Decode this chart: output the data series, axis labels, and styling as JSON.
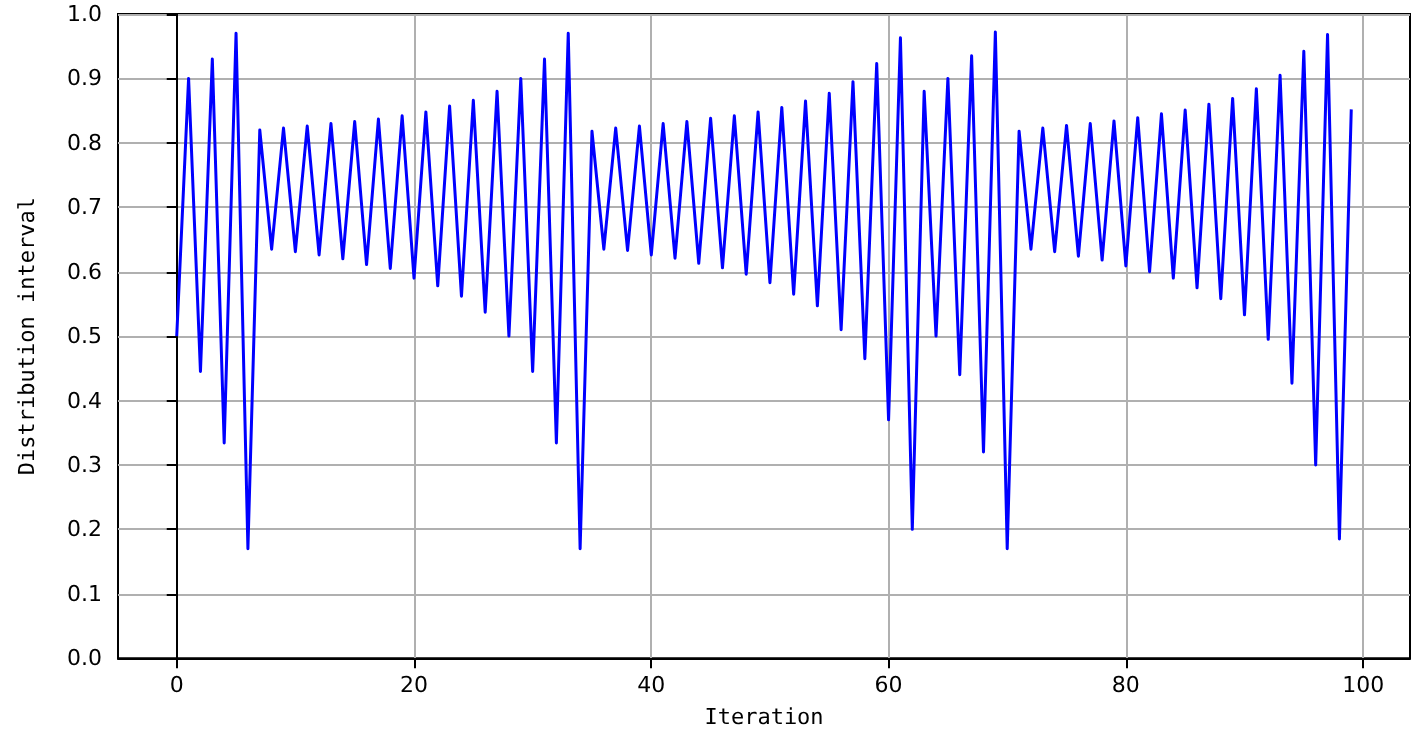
{
  "chart_data": {
    "type": "line",
    "xlabel": "Iteration",
    "ylabel": "Distribution interval",
    "x": [
      0,
      1,
      2,
      3,
      4,
      5,
      6,
      7,
      8,
      9,
      10,
      11,
      12,
      13,
      14,
      15,
      16,
      17,
      18,
      19,
      20,
      21,
      22,
      23,
      24,
      25,
      26,
      27,
      28,
      29,
      30,
      31,
      32,
      33,
      34,
      35,
      36,
      37,
      38,
      39,
      40,
      41,
      42,
      43,
      44,
      45,
      46,
      47,
      48,
      49,
      50,
      51,
      52,
      53,
      54,
      55,
      56,
      57,
      58,
      59,
      60,
      61,
      62,
      63,
      64,
      65,
      66,
      67,
      68,
      69,
      70,
      71,
      72,
      73,
      74,
      75,
      76,
      77,
      78,
      79,
      80,
      81,
      82,
      83,
      84,
      85,
      86,
      87,
      88,
      89,
      90,
      91,
      92,
      93,
      94,
      95,
      96,
      97,
      98,
      99
    ],
    "series": [
      {
        "color": "#0000ff",
        "values": [
          0.5,
          0.9,
          0.445,
          0.93,
          0.334,
          0.97,
          0.17,
          0.82,
          0.635,
          0.823,
          0.631,
          0.826,
          0.626,
          0.83,
          0.62,
          0.833,
          0.611,
          0.837,
          0.605,
          0.842,
          0.59,
          0.848,
          0.578,
          0.857,
          0.562,
          0.866,
          0.537,
          0.88,
          0.5,
          0.9,
          0.445,
          0.93,
          0.334,
          0.97,
          0.17,
          0.818,
          0.635,
          0.823,
          0.633,
          0.826,
          0.626,
          0.83,
          0.621,
          0.833,
          0.613,
          0.838,
          0.606,
          0.842,
          0.596,
          0.848,
          0.583,
          0.855,
          0.565,
          0.865,
          0.547,
          0.877,
          0.51,
          0.895,
          0.465,
          0.923,
          0.37,
          0.963,
          0.2,
          0.88,
          0.5,
          0.9,
          0.44,
          0.935,
          0.32,
          0.972,
          0.17,
          0.818,
          0.635,
          0.823,
          0.631,
          0.827,
          0.624,
          0.83,
          0.618,
          0.834,
          0.609,
          0.839,
          0.6,
          0.845,
          0.59,
          0.851,
          0.575,
          0.86,
          0.558,
          0.869,
          0.533,
          0.884,
          0.495,
          0.905,
          0.427,
          0.942,
          0.3,
          0.968,
          0.185,
          0.852
        ]
      }
    ],
    "xlim": [
      -4.95,
      103.95
    ],
    "xticks": [
      0,
      20,
      40,
      60,
      80,
      100
    ],
    "ylim": [
      0,
      1
    ],
    "yticks": [
      {
        "value": 0,
        "label": "0.0"
      },
      0.1,
      0.2,
      0.3,
      0.4,
      0.5,
      0.6,
      0.7,
      0.8,
      0.9,
      {
        "value": 1,
        "label": "1.0"
      }
    ],
    "grid": true,
    "marker": "none",
    "line_style": "solid"
  }
}
